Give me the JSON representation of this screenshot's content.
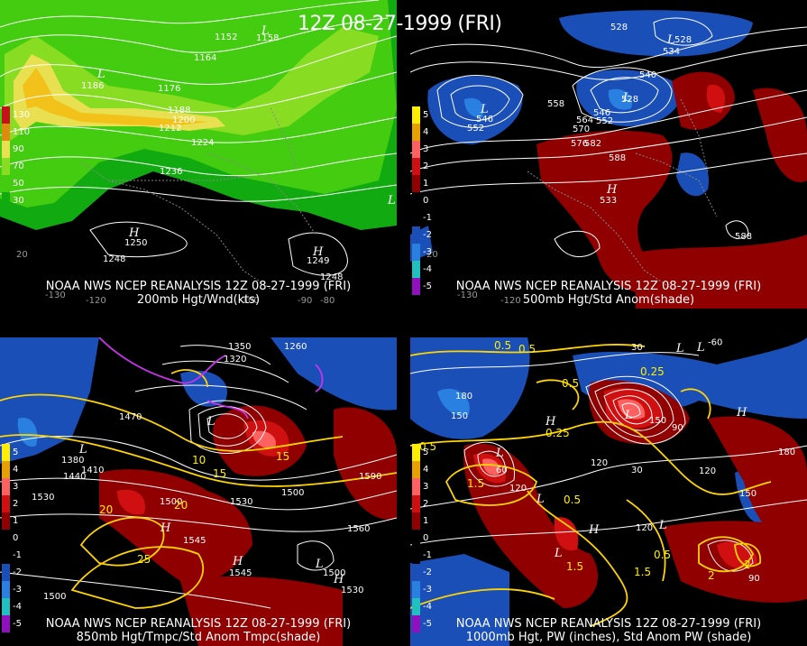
{
  "headline": "12Z 08-27-1999 (FRI)",
  "panels": [
    {
      "caption1": "NOAA NWS NCEP REANALYSIS 12Z 08-27-1999 (FRI)",
      "caption2": "200mb Hgt/Wnd(kts)",
      "legend": [
        {
          "label": "130",
          "color": "#c8101a"
        },
        {
          "label": "110",
          "color": "#e08a10"
        },
        {
          "label": "90",
          "color": "#e8e050"
        },
        {
          "label": "70",
          "color": "#88dd22"
        },
        {
          "label": "50",
          "color": "#44cc11"
        },
        {
          "label": "30",
          "color": "#11aa11"
        }
      ],
      "labels": [
        "1152",
        "1158",
        "1164",
        "1176",
        "1186",
        "1188",
        "1200",
        "1212",
        "1224",
        "1236",
        "1248",
        "1250",
        "1248",
        "1249",
        "20",
        "-130",
        "-120",
        "-100",
        "-90",
        "-80"
      ],
      "hl": [
        "L",
        "L",
        "H",
        "H",
        "L"
      ]
    },
    {
      "caption1": "NOAA NWS NCEP REANALYSIS 12Z 08-27-1999 (FRI)",
      "caption2": "500mb Hgt/Std Anom(shade)",
      "legend": [
        {
          "label": "5",
          "color": "#ffee00"
        },
        {
          "label": "4",
          "color": "#e8a000"
        },
        {
          "label": "3",
          "color": "#ff6060"
        },
        {
          "label": "2",
          "color": "#d01010"
        },
        {
          "label": "1",
          "color": "#900000"
        },
        {
          "label": "0",
          "color": "#000000"
        },
        {
          "label": "-1",
          "color": "#000000"
        },
        {
          "label": "-2",
          "color": "#1a4fb8"
        },
        {
          "label": "-3",
          "color": "#2a80e0"
        },
        {
          "label": "-4",
          "color": "#20c0c0"
        },
        {
          "label": "-5",
          "color": "#9010c0"
        }
      ],
      "labels": [
        "528",
        "528",
        "534",
        "540",
        "546",
        "552",
        "546",
        "552",
        "558",
        "564",
        "570",
        "576",
        "582",
        "588",
        "528",
        "533",
        "588",
        "20",
        "-130",
        "-120"
      ],
      "hl": [
        "L",
        "L",
        "L",
        "H"
      ]
    },
    {
      "caption1": "NOAA NWS NCEP REANALYSIS 12Z 08-27-1999 (FRI)",
      "caption2": "850mb Hgt/Tmpc/Std Anom Tmpc(shade)",
      "legend": [
        {
          "label": "5",
          "color": "#ffee00"
        },
        {
          "label": "4",
          "color": "#e8a000"
        },
        {
          "label": "3",
          "color": "#ff6060"
        },
        {
          "label": "2",
          "color": "#d01010"
        },
        {
          "label": "1",
          "color": "#900000"
        },
        {
          "label": "0",
          "color": "#000000"
        },
        {
          "label": "-1",
          "color": "#000000"
        },
        {
          "label": "-2",
          "color": "#1a4fb8"
        },
        {
          "label": "-3",
          "color": "#2a80e0"
        },
        {
          "label": "-4",
          "color": "#20c0c0"
        },
        {
          "label": "-5",
          "color": "#9010c0"
        }
      ],
      "labels": [
        "1350",
        "1320",
        "1260",
        "1470",
        "1380",
        "1410",
        "1440",
        "1530",
        "1500",
        "1530",
        "1500",
        "1560",
        "1590",
        "1500",
        "1500",
        "1530",
        "1545",
        "1545",
        "10",
        "15",
        "20",
        "25",
        "15",
        "20"
      ],
      "hl": [
        "L",
        "L",
        "H",
        "H",
        "L",
        "H"
      ]
    },
    {
      "caption1": "NOAA NWS NCEP REANALYSIS 12Z 08-27-1999 (FRI)",
      "caption2": "1000mb Hgt, PW (inches), Std Anom PW (shade)",
      "legend": [
        {
          "label": "5",
          "color": "#ffee00"
        },
        {
          "label": "4",
          "color": "#e8a000"
        },
        {
          "label": "3",
          "color": "#ff6060"
        },
        {
          "label": "2",
          "color": "#d01010"
        },
        {
          "label": "1",
          "color": "#900000"
        },
        {
          "label": "0",
          "color": "#000000"
        },
        {
          "label": "-1",
          "color": "#000000"
        },
        {
          "label": "-2",
          "color": "#1a4fb8"
        },
        {
          "label": "-3",
          "color": "#2a80e0"
        },
        {
          "label": "-4",
          "color": "#20c0c0"
        },
        {
          "label": "-5",
          "color": "#9010c0"
        }
      ],
      "labels": [
        "0.5",
        "0.5",
        "0.25",
        "0.5",
        "0.25",
        "0.5",
        "0.5",
        "1.5",
        "1.5",
        "0.5",
        "1.5",
        "2",
        "2",
        "180",
        "150",
        "120",
        "120",
        "90",
        "60",
        "30",
        "120",
        "150",
        "180",
        "120",
        "90",
        "30",
        "-60",
        "150"
      ],
      "hl": [
        "L",
        "L",
        "H",
        "L",
        "L",
        "L",
        "H",
        "L",
        "H",
        "L"
      ]
    }
  ]
}
